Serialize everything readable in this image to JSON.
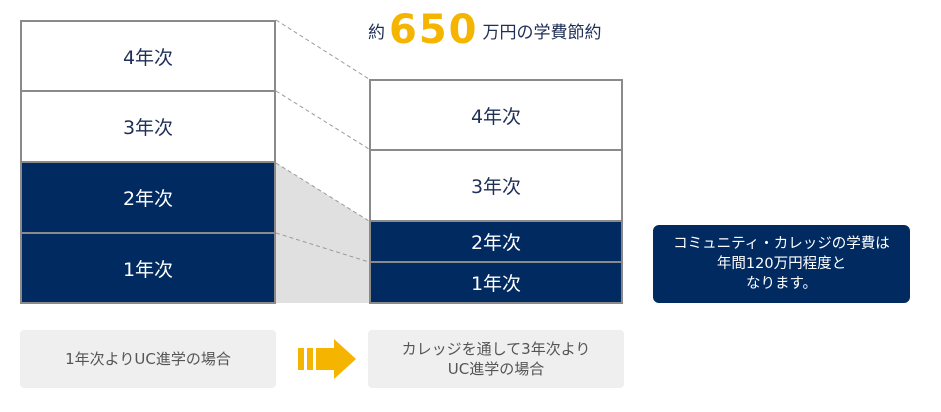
{
  "title": {
    "prefix": "約",
    "amount": "650",
    "suffix": "万円の学費節約"
  },
  "left_stack": [
    {
      "label": "4年次"
    },
    {
      "label": "3年次"
    },
    {
      "label": "2年次"
    },
    {
      "label": "1年次"
    }
  ],
  "right_stack": [
    {
      "label": "4年次"
    },
    {
      "label": "3年次"
    },
    {
      "label": "2年次"
    },
    {
      "label": "1年次"
    }
  ],
  "captions": {
    "left": "1年次よりUC進学の場合",
    "right": "カレッジを通して3年次より\nUC進学の場合"
  },
  "note": "コミュニティ・カレッジの学費は\n年間120万円程度と\nなります。",
  "colors": {
    "navy": "#002a60",
    "accent": "#f5b400",
    "caption_bg": "#efefef",
    "shade": "#e0e0e0"
  }
}
